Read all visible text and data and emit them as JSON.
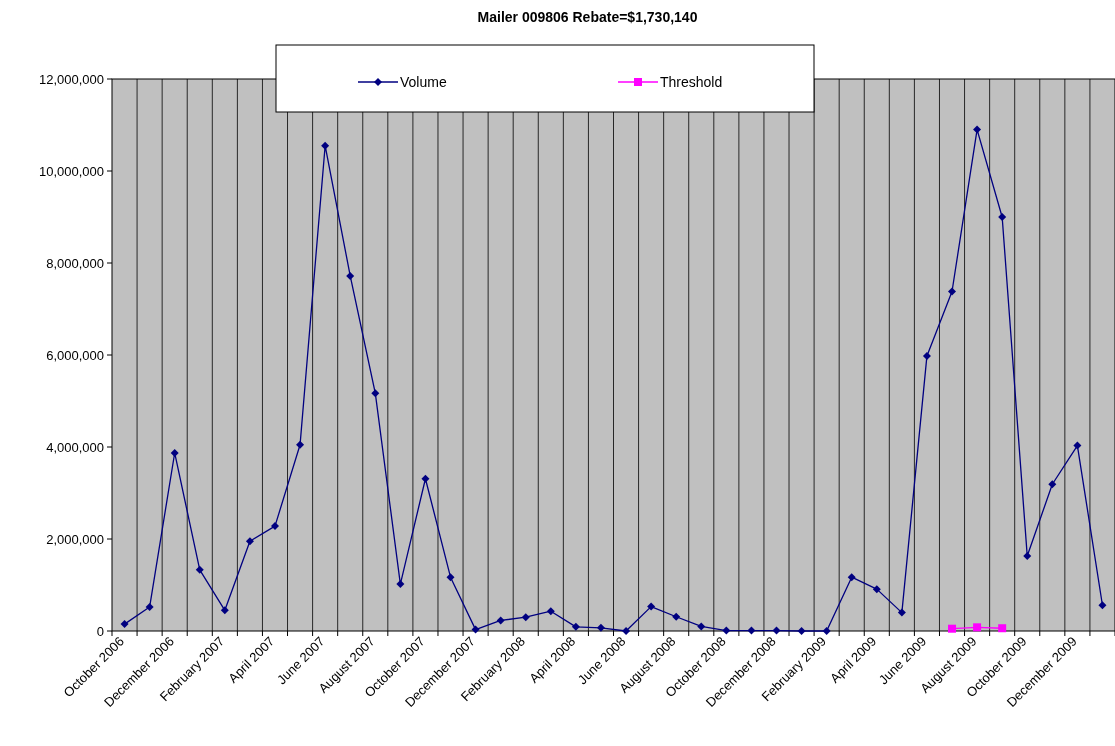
{
  "chart_data": {
    "type": "line",
    "title": "Mailer 009806  Rebate=$1,730,140",
    "categories": [
      "October 2006",
      null,
      "December 2006",
      null,
      "February 2007",
      null,
      "April 2007",
      null,
      "June 2007",
      null,
      "August 2007",
      null,
      "October 2007",
      null,
      "December 2007",
      null,
      "February 2008",
      null,
      "April 2008",
      null,
      "June 2008",
      null,
      "August 2008",
      null,
      "October 2008",
      null,
      "December 2008",
      null,
      "February 2009",
      null,
      "April 2009",
      null,
      "June 2009",
      null,
      "August 2009",
      null,
      "October 2009",
      null,
      "December 2009",
      null
    ],
    "series": [
      {
        "name": "Volume",
        "color": "#000080",
        "marker": "diamond",
        "values": [
          150000,
          520000,
          3870000,
          1330000,
          450000,
          1950000,
          2280000,
          4050000,
          10550000,
          7720000,
          5170000,
          1020000,
          3310000,
          1170000,
          30000,
          230000,
          300000,
          430000,
          90000,
          70000,
          0,
          530000,
          310000,
          100000,
          10000,
          10000,
          10000,
          0,
          0,
          1170000,
          910000,
          400000,
          5980000,
          7380000,
          10900000,
          9000000,
          1630000,
          3190000,
          4030000,
          560000
        ]
      },
      {
        "name": "Threshold",
        "color": "#ff00ff",
        "marker": "square",
        "values": [
          null,
          null,
          null,
          null,
          null,
          null,
          null,
          null,
          null,
          null,
          null,
          null,
          null,
          null,
          null,
          null,
          null,
          null,
          null,
          null,
          null,
          null,
          null,
          null,
          null,
          null,
          null,
          null,
          null,
          null,
          null,
          null,
          null,
          50000,
          80000,
          60000,
          null,
          null,
          null,
          null
        ]
      }
    ],
    "ylim": [
      0,
      12000000
    ],
    "yticks": [
      {
        "value": 0,
        "label": "0"
      },
      {
        "value": 2000000,
        "label": "2,000,000"
      },
      {
        "value": 4000000,
        "label": "4,000,000"
      },
      {
        "value": 6000000,
        "label": "6,000,000"
      },
      {
        "value": 8000000,
        "label": "8,000,000"
      },
      {
        "value": 10000000,
        "label": "10,000,000"
      },
      {
        "value": 12000000,
        "label": "12,000,000"
      }
    ],
    "grid": "x",
    "legend": "top",
    "line_style": "solid"
  }
}
